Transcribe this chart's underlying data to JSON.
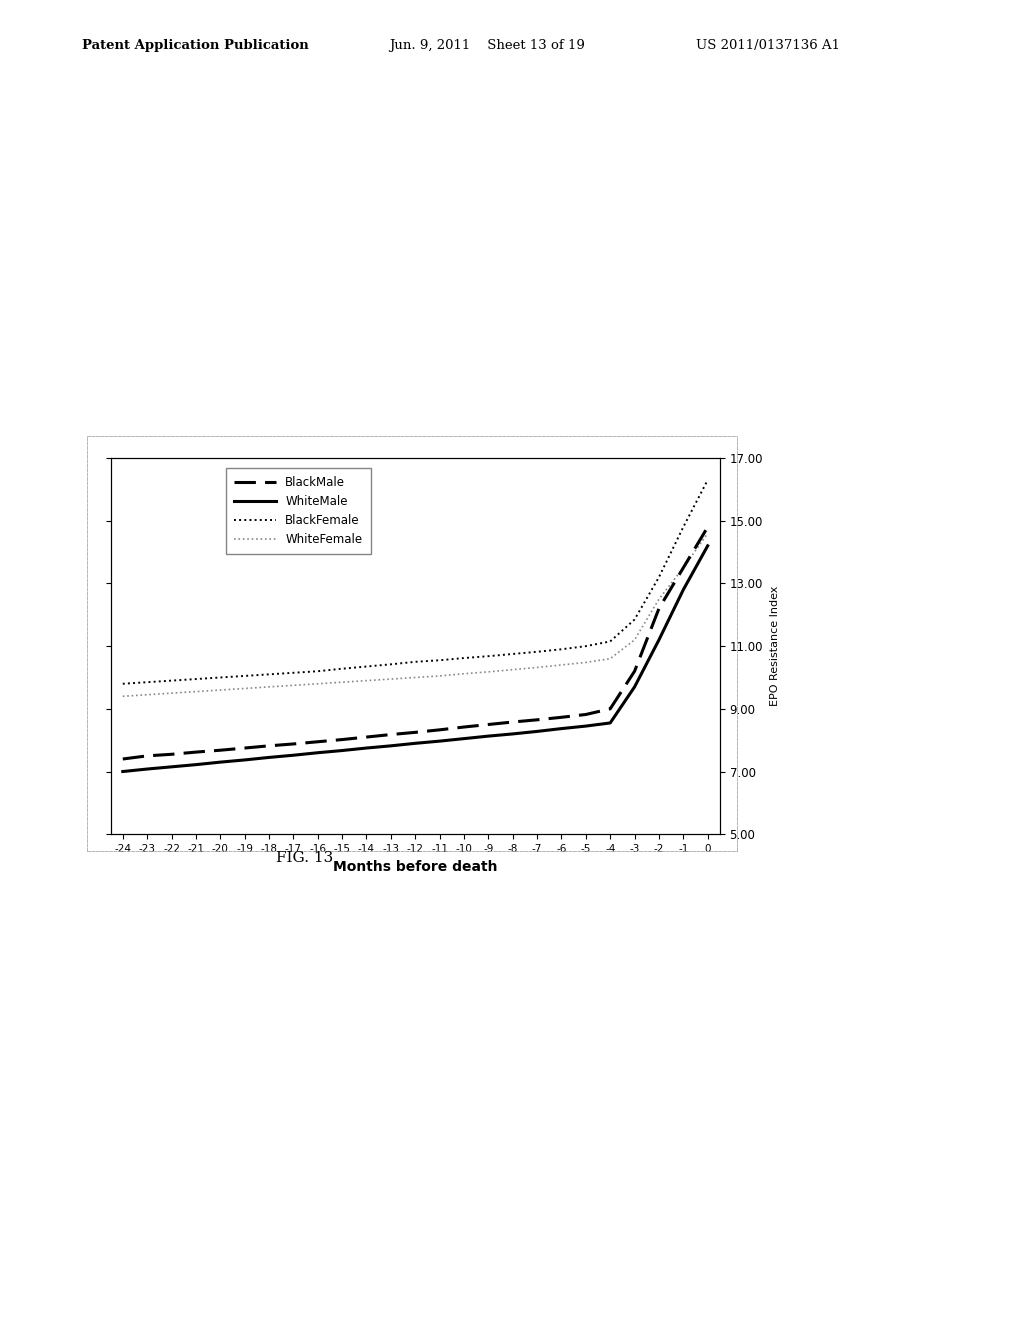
{
  "title": "",
  "xlabel": "Months before death",
  "ylabel": "EPO Resistance Index",
  "xlim": [
    -24.5,
    0.5
  ],
  "ylim": [
    5.0,
    17.0
  ],
  "yticks": [
    5.0,
    7.0,
    9.0,
    11.0,
    13.0,
    15.0,
    17.0
  ],
  "xtick_labels": [
    "-24",
    "-23",
    "-22",
    "-21",
    "-20",
    "-19",
    "-18",
    "-17",
    "-16",
    "-15",
    "-14",
    "-13",
    "-12",
    "-11",
    "-10",
    "-9",
    "-8",
    "-7",
    "-6",
    "-5",
    "-4",
    "-3",
    "-2",
    "-1",
    "0"
  ],
  "x_values": [
    -24,
    -23,
    -22,
    -21,
    -20,
    -19,
    -18,
    -17,
    -16,
    -15,
    -14,
    -13,
    -12,
    -11,
    -10,
    -9,
    -8,
    -7,
    -6,
    -5,
    -4,
    -3,
    -2,
    -1,
    0
  ],
  "black_male": [
    7.4,
    7.5,
    7.55,
    7.62,
    7.68,
    7.75,
    7.82,
    7.88,
    7.95,
    8.02,
    8.1,
    8.18,
    8.25,
    8.33,
    8.42,
    8.5,
    8.58,
    8.65,
    8.73,
    8.82,
    9.0,
    10.2,
    12.2,
    13.5,
    14.8
  ],
  "white_male": [
    7.0,
    7.08,
    7.15,
    7.22,
    7.3,
    7.37,
    7.45,
    7.52,
    7.6,
    7.67,
    7.75,
    7.82,
    7.9,
    7.97,
    8.05,
    8.13,
    8.2,
    8.28,
    8.37,
    8.45,
    8.55,
    9.7,
    11.2,
    12.8,
    14.2
  ],
  "black_female": [
    9.8,
    9.85,
    9.9,
    9.95,
    10.0,
    10.05,
    10.1,
    10.15,
    10.2,
    10.28,
    10.35,
    10.42,
    10.5,
    10.55,
    10.62,
    10.68,
    10.75,
    10.82,
    10.9,
    11.0,
    11.15,
    11.85,
    13.2,
    14.8,
    16.3
  ],
  "white_female": [
    9.4,
    9.45,
    9.5,
    9.55,
    9.6,
    9.65,
    9.7,
    9.75,
    9.8,
    9.85,
    9.9,
    9.95,
    10.0,
    10.05,
    10.12,
    10.18,
    10.25,
    10.32,
    10.4,
    10.48,
    10.6,
    11.2,
    12.5,
    13.5,
    14.6
  ],
  "background_color": "#ffffff",
  "fig_bg_color": "#ffffff",
  "header_left": "Patent Application Publication",
  "header_mid": "Jun. 9, 2011    Sheet 13 of 19",
  "header_right": "US 2011/0137136 A1",
  "fig_label": "FIG. 13"
}
